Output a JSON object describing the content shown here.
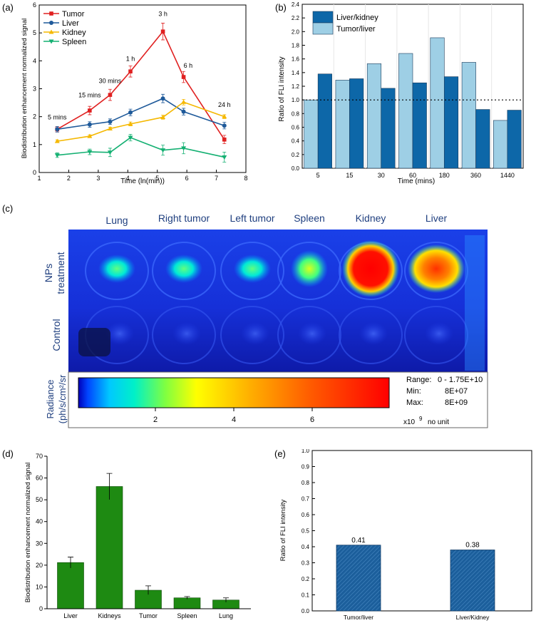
{
  "panels": {
    "a": "(a)",
    "b": "(b)",
    "c": "(c)",
    "d": "(d)",
    "e": "(e)"
  },
  "colors": {
    "tumor": "#e02020",
    "liver": "#1f5a9a",
    "kidney": "#f5b800",
    "spleen": "#14b072",
    "bar_dark": "#0d67a8",
    "bar_light": "#9ecfe5",
    "bar_green": "#1e8a12",
    "bar_e": "#1c5f9c"
  },
  "chart_data": [
    {
      "id": "a",
      "type": "line",
      "title": "",
      "xlabel": "Time (ln(min))",
      "ylabel": "Biodistribution enhancement normalized signal",
      "xlim": [
        1,
        8
      ],
      "ylim": [
        0,
        6
      ],
      "xticks": [
        1,
        2,
        3,
        4,
        5,
        6,
        7,
        8
      ],
      "yticks": [
        0,
        1,
        2,
        3,
        4,
        5,
        6
      ],
      "legend": "top-left",
      "x": [
        1.61,
        2.71,
        3.4,
        4.09,
        5.19,
        5.89,
        7.27
      ],
      "series": [
        {
          "name": "Tumor",
          "color_key": "tumor",
          "marker": "square",
          "values": [
            1.55,
            2.22,
            2.78,
            3.62,
            5.05,
            3.42,
            1.18
          ],
          "err": [
            0.1,
            0.15,
            0.2,
            0.2,
            0.3,
            0.2,
            0.15
          ]
        },
        {
          "name": "Liver",
          "color_key": "liver",
          "marker": "circle",
          "values": [
            1.55,
            1.72,
            1.82,
            2.15,
            2.65,
            2.18,
            1.68
          ],
          "err": [
            0.1,
            0.1,
            0.1,
            0.12,
            0.15,
            0.12,
            0.12
          ]
        },
        {
          "name": "Kidney",
          "color_key": "kidney",
          "marker": "triangle-up",
          "values": [
            1.12,
            1.3,
            1.57,
            1.74,
            1.98,
            2.52,
            2.0
          ],
          "err": [
            0.05,
            0.05,
            0.05,
            0.07,
            0.07,
            0.1,
            0.07
          ]
        },
        {
          "name": "Spleen",
          "color_key": "spleen",
          "marker": "triangle-down",
          "values": [
            0.62,
            0.74,
            0.72,
            1.25,
            0.8,
            0.87,
            0.55
          ],
          "err": [
            0.08,
            0.1,
            0.15,
            0.12,
            0.18,
            0.2,
            0.18
          ]
        }
      ],
      "point_labels": [
        "5 mins",
        "15 mins",
        "30 mins",
        "1 h",
        "3 h",
        "6 h",
        "24 h"
      ]
    },
    {
      "id": "b",
      "type": "bar",
      "title": "",
      "xlabel": "Time (mins)",
      "ylabel": "Ratio of FLI intensity",
      "ylim": [
        0,
        2.4
      ],
      "yticks": [
        0.0,
        0.2,
        0.4,
        0.6,
        0.8,
        1.0,
        1.2,
        1.4,
        1.6,
        1.8,
        2.0,
        2.2,
        2.4
      ],
      "categories": [
        "5",
        "15",
        "30",
        "60",
        "180",
        "360",
        "1440"
      ],
      "legend": "top-left",
      "reference_line": 1.0,
      "series": [
        {
          "name": "Tumor/liver",
          "color_key": "bar_light",
          "values": [
            1.0,
            1.29,
            1.53,
            1.68,
            1.91,
            1.55,
            0.7
          ]
        },
        {
          "name": "Liver/kidney",
          "color_key": "bar_dark",
          "values": [
            1.38,
            1.31,
            1.17,
            1.25,
            1.34,
            0.86,
            0.85
          ]
        }
      ]
    },
    {
      "id": "d",
      "type": "bar",
      "title": "",
      "xlabel": "",
      "ylabel": "Biodistribution enhancement normalized signal",
      "ylim": [
        0,
        70
      ],
      "yticks": [
        0,
        10,
        20,
        30,
        40,
        50,
        60,
        70
      ],
      "categories": [
        "Liver",
        "Kidneys",
        "Tumor",
        "Spleen",
        "Lung"
      ],
      "values": [
        21.2,
        56.1,
        8.5,
        5.0,
        4.0
      ],
      "err": [
        2.5,
        6.0,
        2.0,
        0.6,
        1.0
      ]
    },
    {
      "id": "e",
      "type": "bar",
      "title": "",
      "xlabel": "",
      "ylabel": "Ratio of FLI intensity",
      "ylim": [
        0,
        1.0
      ],
      "yticks": [
        0.0,
        0.1,
        0.2,
        0.3,
        0.4,
        0.5,
        0.6,
        0.7,
        0.8,
        0.9,
        1.0
      ],
      "categories": [
        "Tumor/liver",
        "Liver/Kidney"
      ],
      "values": [
        0.41,
        0.38
      ],
      "data_labels": [
        "0.41",
        "0.38"
      ]
    }
  ],
  "imaging": {
    "columns": [
      "Lung",
      "Right tumor",
      "Left tumor",
      "Spleen",
      "Kidney",
      "Liver"
    ],
    "rows": [
      "NPs\ntreatment",
      "Control"
    ],
    "row_nps_line1": "NPs",
    "row_nps_line2": "treatment",
    "row_control": "Control",
    "colorbar_title_line1": "Radiance",
    "colorbar_title_line2": "(ph/s/cm²/sr",
    "colorbar_ticks": [
      "2",
      "4",
      "6"
    ],
    "range_label": "Range:",
    "range_value": "0  -  1.75E+10",
    "min_label": "Min:",
    "min_value": "8E+07",
    "max_label": "Max:",
    "max_value": "8E+09",
    "unit_prefix": "x10",
    "unit_exp": "9",
    "unit_suffix": "no unit",
    "nps_intensity": [
      0.42,
      0.4,
      0.4,
      0.5,
      1.0,
      0.8
    ],
    "control_intensity": [
      0.08,
      0.05,
      0.05,
      0.08,
      0.12,
      0.07
    ]
  }
}
